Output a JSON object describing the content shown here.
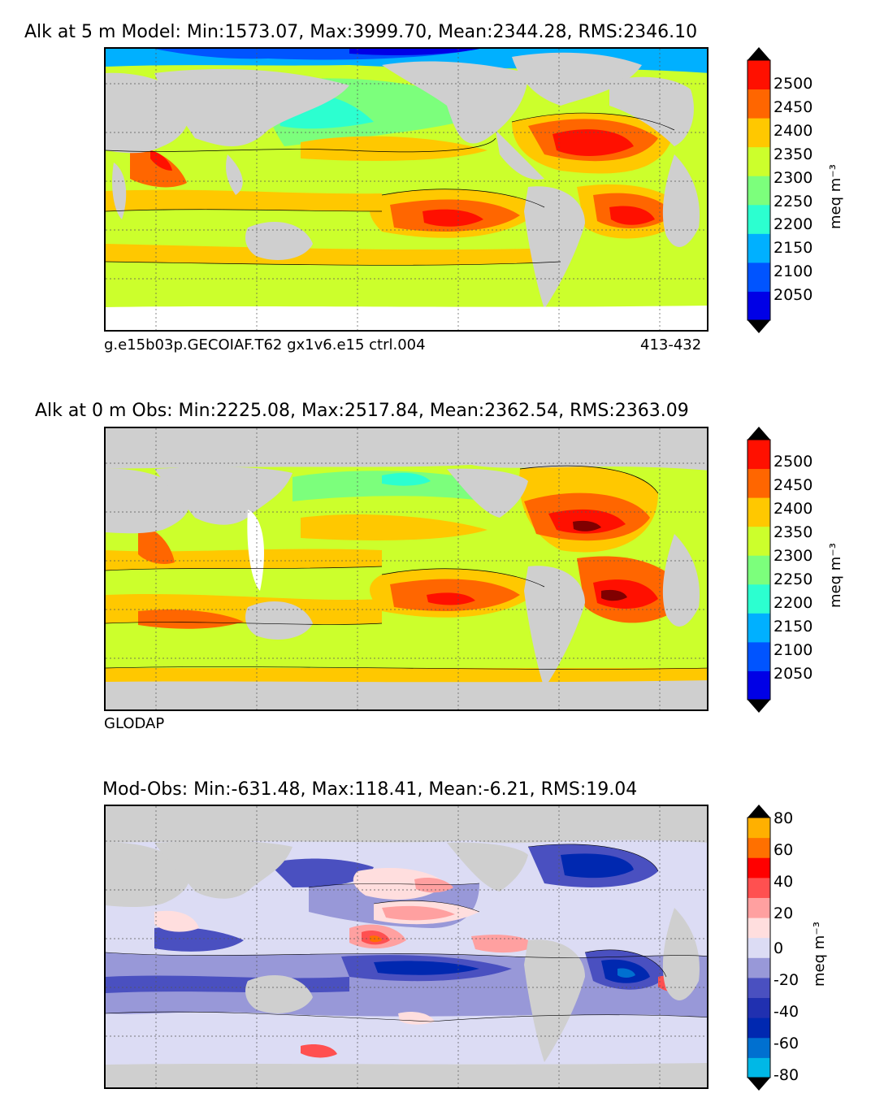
{
  "panels": [
    {
      "id": "model",
      "title": "Alk at 5 m Model: Min:1573.07, Max:3999.70, Mean:2344.28, RMS:2346.10",
      "left_caption": "g.e15b03p.GECOIAF.T62 gx1v6.e15 ctrl.004",
      "right_caption": "413-432",
      "colorbar": {
        "ticks": [
          "2500",
          "2450",
          "2400",
          "2350",
          "2300",
          "2250",
          "2200",
          "2150",
          "2100",
          "2050"
        ],
        "unit": "meq m⁻³",
        "colors": [
          "#00007a",
          "#0000e6",
          "#0054ff",
          "#00b0ff",
          "#2cffd0",
          "#7cff7c",
          "#ccff2c",
          "#ffc800",
          "#ff6600",
          "#ff1000",
          "#800000"
        ]
      }
    },
    {
      "id": "obs",
      "title": "Alk at 0 m Obs: Min:2225.08, Max:2517.84, Mean:2362.54, RMS:2363.09",
      "left_caption": "GLODAP",
      "right_caption": "",
      "colorbar": {
        "ticks": [
          "2500",
          "2450",
          "2400",
          "2350",
          "2300",
          "2250",
          "2200",
          "2150",
          "2100",
          "2050"
        ],
        "unit": "meq m⁻³",
        "colors": [
          "#00007a",
          "#0000e6",
          "#0054ff",
          "#00b0ff",
          "#2cffd0",
          "#7cff7c",
          "#ccff2c",
          "#ffc800",
          "#ff6600",
          "#ff1000",
          "#800000"
        ]
      }
    },
    {
      "id": "diff",
      "title": "Mod-Obs: Min:-631.48, Max:118.41, Mean:-6.21, RMS:19.04",
      "left_caption": "",
      "right_caption": "",
      "colorbar": {
        "ticks": [
          "80",
          "60",
          "40",
          "20",
          "0",
          "-20",
          "-40",
          "-60",
          "-80"
        ],
        "unit": "meq m⁻³",
        "colors": [
          "#00ffff",
          "#00b8e6",
          "#0070d0",
          "#0028b0",
          "#2030b0",
          "#4a50c0",
          "#9898d8",
          "#dcdcf4",
          "#ffdede",
          "#ffa0a0",
          "#ff5050",
          "#ff0000",
          "#ff7000",
          "#ffb000",
          "#ffff00"
        ]
      }
    }
  ],
  "colors": {
    "land": "#cfcfcf",
    "coast": "#000000",
    "grid": "#555555"
  }
}
